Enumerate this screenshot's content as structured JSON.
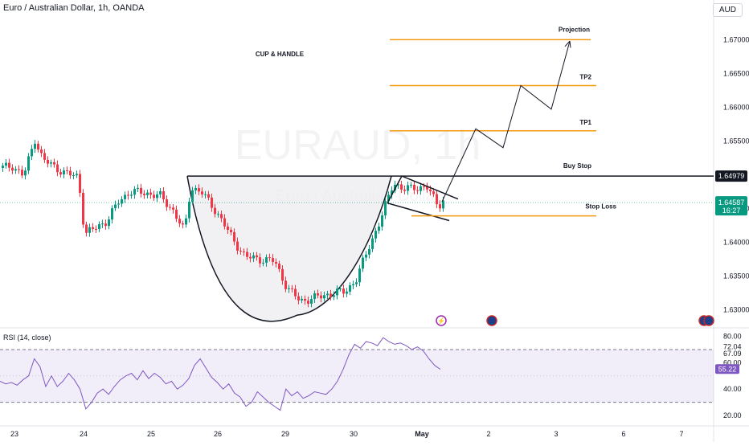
{
  "header": {
    "title": "Euro / Australian Dollar, 1h, OANDA",
    "currency": "AUD"
  },
  "watermark": {
    "symbol": "EURAUD, 1h",
    "name": "Euro / Australian Dollar"
  },
  "chart_data": {
    "type": "candlestick",
    "price_ticks": [
      "1.67000",
      "1.66500",
      "1.66000",
      "1.65500",
      "1.64500",
      "1.64000",
      "1.63500",
      "1.63000"
    ],
    "price_tick_values": [
      1.67,
      1.665,
      1.66,
      1.655,
      1.645,
      1.64,
      1.635,
      1.63
    ],
    "x_ticks": [
      "23",
      "24",
      "25",
      "26",
      "29",
      "30",
      "May",
      "2",
      "3",
      "6",
      "7"
    ],
    "price_range": [
      1.6285,
      1.6735
    ],
    "annotations": {
      "pattern": "CUP & HANDLE",
      "projection": "Projection",
      "tp2": "TP2",
      "tp1": "TP1",
      "buy_stop": "Buy Stop",
      "stop_loss": "Stop Loss"
    },
    "levels": {
      "projection": 1.67,
      "tp2": 1.6632,
      "tp1": 1.6565,
      "buy_stop": 1.64979,
      "stop_loss": 1.6439
    },
    "buy_stop_label": "1.64979",
    "last_price_label": "1.64587",
    "countdown_label": "16:27",
    "last_price": 1.64587,
    "colors": {
      "up": "#089981",
      "down": "#f23645",
      "levels": "#f59a0f",
      "rsi": "#7e57c2"
    },
    "rsi": {
      "title": "RSI (14, close)",
      "ticks": [
        "80.00",
        "72.04",
        "67.09",
        "60.00",
        "40.00",
        "20.00"
      ],
      "tick_values": [
        80.0,
        72.04,
        67.09,
        60.0,
        40.0,
        20.0
      ],
      "range": [
        17,
        84
      ],
      "bands": [
        70,
        30
      ],
      "current_label": "55.22",
      "current": 55.22,
      "values": [
        46,
        44,
        45,
        43,
        47,
        50,
        63,
        57,
        42,
        50,
        42,
        46,
        52,
        47,
        40,
        25,
        30,
        37,
        40,
        36,
        42,
        47,
        50,
        52,
        47,
        54,
        48,
        52,
        49,
        44,
        46,
        40,
        43,
        48,
        58,
        63,
        56,
        49,
        45,
        40,
        44,
        37,
        34,
        27,
        30,
        38,
        34,
        30,
        27,
        24,
        40,
        35,
        38,
        33,
        35,
        38,
        37,
        36,
        40,
        46,
        55,
        66,
        74,
        71,
        76,
        75,
        73,
        79,
        76,
        74,
        75,
        73,
        70,
        72,
        69,
        63,
        58,
        55
      ]
    },
    "markers": [
      "lightning-icon",
      "flag-icon",
      "flag-icon"
    ]
  }
}
